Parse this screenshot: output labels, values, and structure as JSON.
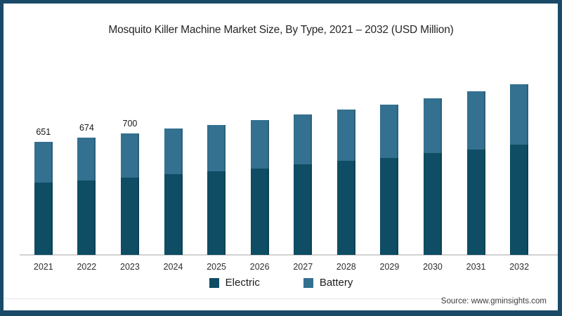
{
  "frame": {
    "border_color": "#1a4a68"
  },
  "header": {
    "title": "Mosquito Killer Machine Market Size, By Type, 2021 – 2032 (USD Million)"
  },
  "footer": {
    "source": "Source: www.gminsights.com"
  },
  "chart_data": {
    "type": "bar",
    "stacked": true,
    "title": "Mosquito Killer Machine Market Size, By Type, 2021 – 2032 (USD Million)",
    "categories": [
      "2021",
      "2022",
      "2023",
      "2024",
      "2025",
      "2026",
      "2027",
      "2028",
      "2029",
      "2030",
      "2031",
      "2032"
    ],
    "series": [
      {
        "name": "Electric",
        "color": "#0e4d63",
        "values": [
          416,
          428,
          444,
          464,
          481,
          497,
          520,
          541,
          559,
          585,
          607,
          636
        ]
      },
      {
        "name": "Battery",
        "color": "#34708f",
        "values": [
          235,
          246,
          256,
          263,
          269,
          280,
          287,
          297,
          307,
          319,
          337,
          346
        ]
      }
    ],
    "totals": [
      651,
      674,
      700,
      727,
      750,
      777,
      807,
      838,
      866,
      904,
      944,
      982
    ],
    "bar_total_labels": [
      "651",
      "674",
      "700",
      "",
      "",
      "",
      "",
      "",
      "",
      "",
      "",
      ""
    ],
    "xlabel": "",
    "ylabel": "",
    "ylim": [
      0,
      1092
    ],
    "grid": false,
    "y_axis_shown": false,
    "legend_position": "bottom",
    "axis_line_color": "#d2d2d2"
  }
}
